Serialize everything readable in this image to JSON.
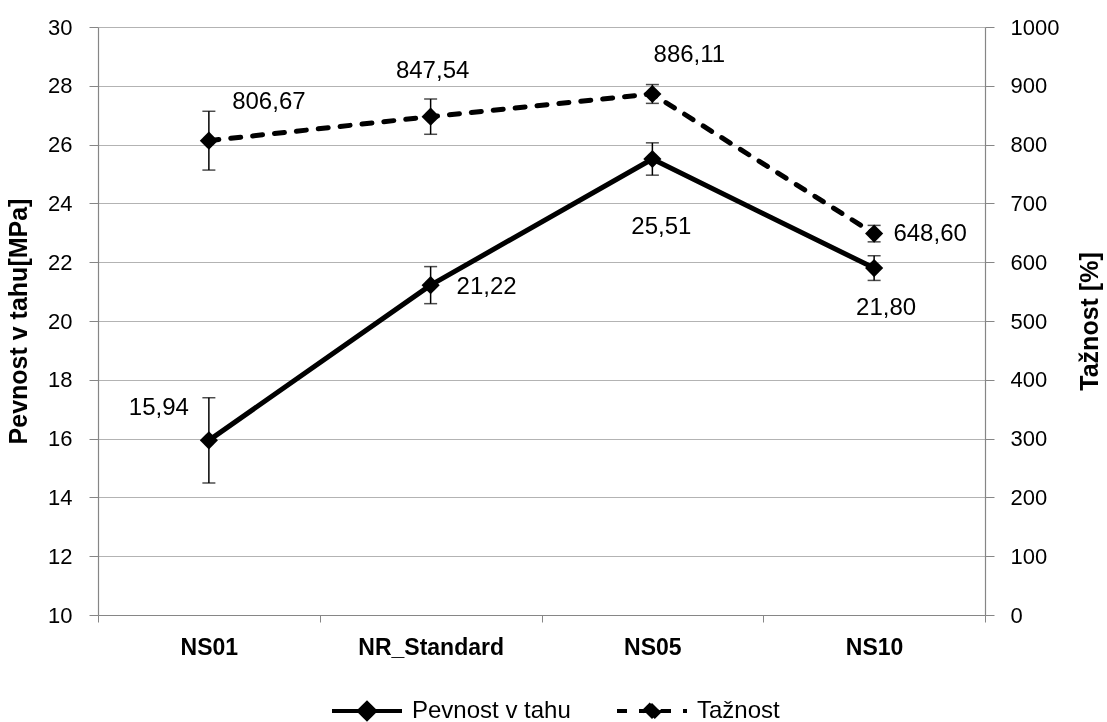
{
  "chart_data": {
    "type": "line",
    "categories": [
      "NS01",
      "NR_Standard",
      "NS05",
      "NS10"
    ],
    "series": [
      {
        "name": "Pevnost v tahu",
        "color": "#000000",
        "line_style": "solid",
        "values": [
          15.94,
          21.22,
          25.51,
          21.8
        ],
        "errors": [
          1.45,
          0.63,
          0.55,
          0.42
        ],
        "value_labels": [
          "15,94",
          "21,22",
          "25,51",
          "21,80"
        ]
      },
      {
        "name": "Tažnost",
        "color": "#000000",
        "line_style": "dashed",
        "axis": "y2",
        "values": [
          806.67,
          847.54,
          886.11,
          648.6
        ],
        "errors": [
          50,
          30,
          16,
          14
        ],
        "value_labels": [
          "806,67",
          "847,54",
          "886,11",
          "648,60"
        ]
      }
    ],
    "ylabel": "Pevnost v tahu[MPa]",
    "y2label": "Tažnost [%]",
    "ylim": [
      10,
      30
    ],
    "yticks": [
      10,
      12,
      14,
      16,
      18,
      20,
      22,
      24,
      26,
      28,
      30
    ],
    "y2lim": [
      0,
      1000
    ],
    "y2ticks": [
      0,
      100,
      200,
      300,
      400,
      500,
      600,
      700,
      800,
      900,
      1000
    ],
    "grid": "y",
    "legend": "bottom",
    "marker": "diamond"
  }
}
